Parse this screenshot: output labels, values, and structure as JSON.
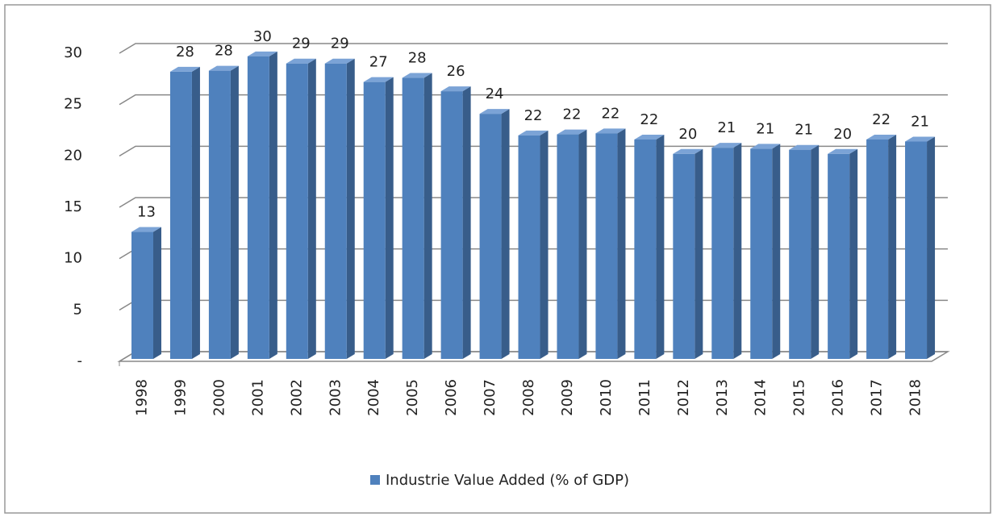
{
  "chart_data": {
    "type": "bar3d",
    "categories": [
      "1998",
      "1999",
      "2000",
      "2001",
      "2002",
      "2003",
      "2004",
      "2005",
      "2006",
      "2007",
      "2008",
      "2009",
      "2010",
      "2011",
      "2012",
      "2013",
      "2014",
      "2015",
      "2016",
      "2017",
      "2018"
    ],
    "series": [
      {
        "name": "Industrie Value Added (% of GDP)",
        "color": "#4f81bd",
        "values": [
          12.6,
          28.2,
          28.3,
          29.7,
          29.0,
          29.0,
          27.2,
          27.6,
          26.3,
          24.1,
          22.0,
          22.1,
          22.2,
          21.6,
          20.2,
          20.8,
          20.7,
          20.6,
          20.2,
          21.6,
          21.4
        ],
        "value_labels": [
          13,
          28,
          28,
          30,
          29,
          29,
          27,
          28,
          26,
          24,
          22,
          22,
          22,
          22,
          20,
          21,
          21,
          21,
          20,
          22,
          21
        ]
      }
    ],
    "ylim": [
      0,
      30
    ],
    "yticks": [
      {
        "value": 0,
        "label": "-"
      },
      5,
      10,
      15,
      20,
      25,
      30
    ],
    "grid": true,
    "legend": "bottom"
  }
}
